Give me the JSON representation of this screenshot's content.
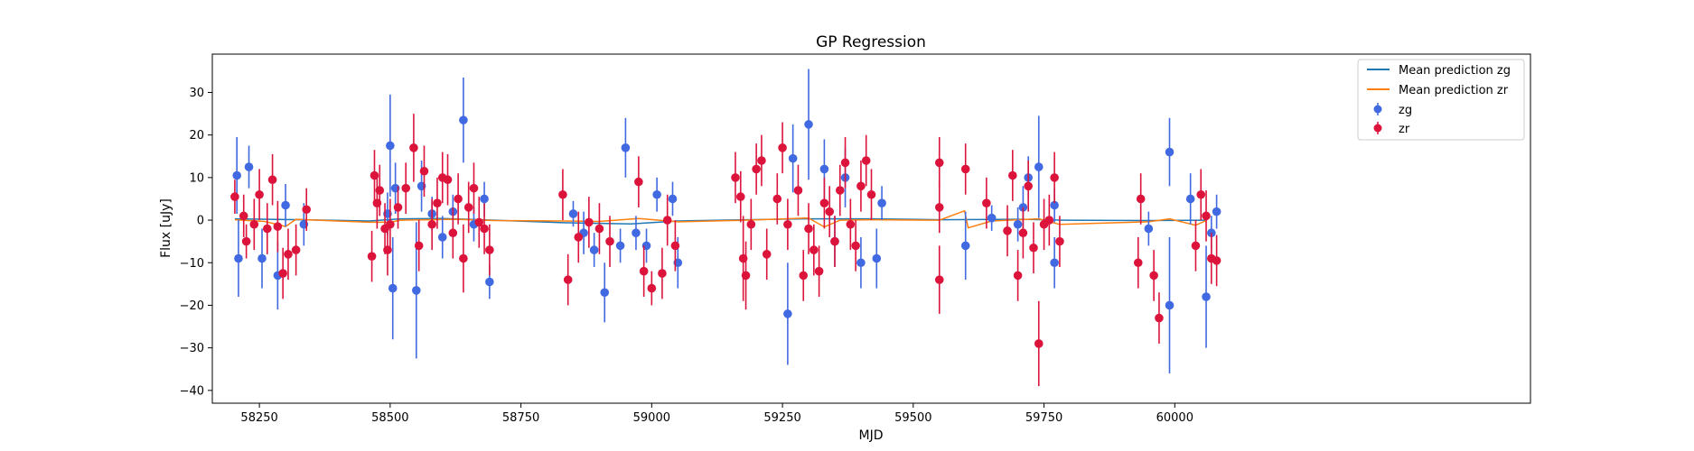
{
  "chart_data": {
    "type": "scatter",
    "title": "GP Regression",
    "xlabel": "MJD",
    "ylabel": "Flux [uJy]",
    "xlim": [
      58160,
      60680
    ],
    "ylim": [
      -43,
      39
    ],
    "xticks": [
      58250,
      58500,
      58750,
      59000,
      59250,
      59500,
      59750,
      60000
    ],
    "yticks": [
      30,
      20,
      10,
      0,
      -10,
      -20,
      -30,
      -40
    ],
    "grid": false,
    "legend_position": "top-right",
    "colors": {
      "zg": "#4169e1",
      "zr": "#dc143c",
      "mean_zg": "#1f77b4",
      "mean_zr": "#ff7f0e"
    },
    "legend": [
      {
        "label": "Mean prediction zg",
        "kind": "line",
        "color": "#1f77b4"
      },
      {
        "label": "Mean prediction zr",
        "kind": "line",
        "color": "#ff7f0e"
      },
      {
        "label": "zg",
        "kind": "errorbar",
        "color": "#4169e1"
      },
      {
        "label": "zr",
        "kind": "errorbar",
        "color": "#dc143c"
      }
    ],
    "series": [
      {
        "name": "Mean prediction zg",
        "kind": "line",
        "color": "#1f77b4",
        "points": [
          [
            58203,
            0.3
          ],
          [
            58330,
            0.1
          ],
          [
            58460,
            -0.2
          ],
          [
            58520,
            0.3
          ],
          [
            58600,
            0.4
          ],
          [
            58700,
            0.0
          ],
          [
            58830,
            -0.6
          ],
          [
            58960,
            -0.9
          ],
          [
            59050,
            -0.2
          ],
          [
            59180,
            0.1
          ],
          [
            59300,
            0.3
          ],
          [
            59420,
            0.3
          ],
          [
            59550,
            0.1
          ],
          [
            59700,
            0.2
          ],
          [
            59790,
            0.0
          ],
          [
            59950,
            -0.1
          ],
          [
            60060,
            0.0
          ]
        ]
      },
      {
        "name": "Mean prediction zr",
        "kind": "line",
        "color": "#ff7f0e",
        "points": [
          [
            58203,
            0.1
          ],
          [
            58260,
            -0.3
          ],
          [
            58300,
            -1.5
          ],
          [
            58320,
            0.2
          ],
          [
            58460,
            -0.5
          ],
          [
            58500,
            -0.5
          ],
          [
            58520,
            0.0
          ],
          [
            58620,
            0.2
          ],
          [
            58700,
            -0.1
          ],
          [
            58830,
            -0.2
          ],
          [
            58900,
            -0.3
          ],
          [
            58975,
            0.4
          ],
          [
            59050,
            -0.4
          ],
          [
            59180,
            0.0
          ],
          [
            59300,
            0.5
          ],
          [
            59330,
            -1.6
          ],
          [
            59360,
            0.0
          ],
          [
            59420,
            0.1
          ],
          [
            59550,
            0.0
          ],
          [
            59598,
            2.2
          ],
          [
            59605,
            -1.8
          ],
          [
            59650,
            -0.2
          ],
          [
            59740,
            0.3
          ],
          [
            59780,
            -1.0
          ],
          [
            59950,
            -0.4
          ],
          [
            59990,
            0.3
          ],
          [
            60040,
            -1.2
          ],
          [
            60060,
            -0.1
          ]
        ]
      },
      {
        "name": "zg",
        "kind": "errorbar",
        "color": "#4169e1",
        "points": [
          [
            58207,
            10.5,
            9
          ],
          [
            58210,
            -9,
            9
          ],
          [
            58230,
            12.5,
            5
          ],
          [
            58255,
            -9,
            7
          ],
          [
            58285,
            -13,
            8
          ],
          [
            58300,
            3.5,
            5
          ],
          [
            58335,
            -1,
            5
          ],
          [
            58495,
            1.5,
            5
          ],
          [
            58500,
            17.5,
            12
          ],
          [
            58505,
            -16,
            12
          ],
          [
            58510,
            7.5,
            6
          ],
          [
            58550,
            -16.5,
            16
          ],
          [
            58560,
            8,
            6
          ],
          [
            58580,
            1.5,
            4
          ],
          [
            58600,
            -4,
            5
          ],
          [
            58620,
            2,
            4
          ],
          [
            58640,
            23.5,
            10
          ],
          [
            58660,
            -1,
            4
          ],
          [
            58680,
            5,
            4
          ],
          [
            58690,
            -14.5,
            4
          ],
          [
            58850,
            1.5,
            3
          ],
          [
            58870,
            -3,
            5
          ],
          [
            58890,
            -7,
            4
          ],
          [
            58910,
            -17,
            7
          ],
          [
            58940,
            -6,
            4
          ],
          [
            58950,
            17,
            7
          ],
          [
            58970,
            -3,
            4
          ],
          [
            58990,
            -6,
            4
          ],
          [
            59010,
            6,
            4
          ],
          [
            59040,
            5,
            4
          ],
          [
            59050,
            -10,
            6
          ],
          [
            59260,
            -22,
            12
          ],
          [
            59270,
            14.5,
            8
          ],
          [
            59300,
            22.5,
            13
          ],
          [
            59330,
            12,
            7
          ],
          [
            59350,
            -5,
            6
          ],
          [
            59370,
            10,
            7
          ],
          [
            59400,
            -10,
            6
          ],
          [
            59430,
            -9,
            7
          ],
          [
            59440,
            4,
            4
          ],
          [
            59600,
            -6,
            8
          ],
          [
            59650,
            0.5,
            3
          ],
          [
            59700,
            -1,
            4
          ],
          [
            59710,
            3,
            5
          ],
          [
            59720,
            10,
            5
          ],
          [
            59740,
            12.5,
            12
          ],
          [
            59770,
            3.5,
            4
          ],
          [
            59770,
            -10,
            6
          ],
          [
            59950,
            -2,
            4
          ],
          [
            59990,
            16,
            8
          ],
          [
            59990,
            -20,
            16
          ],
          [
            60030,
            5,
            6
          ],
          [
            60060,
            -18,
            12
          ],
          [
            60070,
            -3,
            4
          ],
          [
            60080,
            2,
            4
          ]
        ]
      },
      {
        "name": "zr",
        "kind": "errorbar",
        "color": "#dc143c",
        "points": [
          [
            58203,
            5.5,
            4
          ],
          [
            58220,
            1,
            5
          ],
          [
            58225,
            -5,
            4
          ],
          [
            58240,
            -1,
            6
          ],
          [
            58250,
            6,
            6
          ],
          [
            58265,
            -2,
            6
          ],
          [
            58275,
            9.5,
            6
          ],
          [
            58285,
            -1.5,
            6
          ],
          [
            58295,
            -12.5,
            6
          ],
          [
            58305,
            -8,
            6
          ],
          [
            58320,
            -7,
            6
          ],
          [
            58340,
            2.5,
            5
          ],
          [
            58465,
            -8.5,
            6
          ],
          [
            58470,
            10.5,
            6
          ],
          [
            58475,
            4,
            6
          ],
          [
            58480,
            7,
            6
          ],
          [
            58490,
            -2,
            6
          ],
          [
            58495,
            -7,
            6
          ],
          [
            58500,
            -1,
            6
          ],
          [
            58515,
            3,
            5
          ],
          [
            58530,
            7.5,
            6
          ],
          [
            58545,
            17,
            8
          ],
          [
            58555,
            -6,
            6
          ],
          [
            58565,
            11.5,
            6
          ],
          [
            58580,
            -1,
            6
          ],
          [
            58590,
            4,
            6
          ],
          [
            58600,
            10,
            6
          ],
          [
            58610,
            9.5,
            6
          ],
          [
            58620,
            -3,
            6
          ],
          [
            58630,
            5,
            6
          ],
          [
            58640,
            -9,
            8
          ],
          [
            58650,
            3,
            6
          ],
          [
            58660,
            7.5,
            6
          ],
          [
            58670,
            -0.5,
            6
          ],
          [
            58680,
            -2,
            6
          ],
          [
            58690,
            -7,
            6
          ],
          [
            58830,
            6,
            6
          ],
          [
            58840,
            -14,
            6
          ],
          [
            58860,
            -4,
            6
          ],
          [
            58880,
            -0.5,
            6
          ],
          [
            58900,
            -2,
            6
          ],
          [
            58920,
            -5,
            6
          ],
          [
            58975,
            9,
            6
          ],
          [
            58985,
            -12,
            6
          ],
          [
            59000,
            -16,
            4
          ],
          [
            59020,
            -12.5,
            6
          ],
          [
            59030,
            0,
            6
          ],
          [
            59045,
            -6,
            6
          ],
          [
            59160,
            10,
            6
          ],
          [
            59170,
            5.5,
            6
          ],
          [
            59175,
            -9,
            10
          ],
          [
            59180,
            -13,
            8
          ],
          [
            59190,
            -1,
            6
          ],
          [
            59200,
            12,
            6
          ],
          [
            59210,
            14,
            6
          ],
          [
            59220,
            -8,
            6
          ],
          [
            59240,
            5,
            6
          ],
          [
            59250,
            17,
            6
          ],
          [
            59260,
            -1,
            6
          ],
          [
            59280,
            7,
            6
          ],
          [
            59290,
            -13,
            6
          ],
          [
            59300,
            -2,
            6
          ],
          [
            59310,
            -7,
            6
          ],
          [
            59320,
            -12,
            6
          ],
          [
            59330,
            4,
            6
          ],
          [
            59340,
            2,
            6
          ],
          [
            59350,
            -5,
            6
          ],
          [
            59360,
            7,
            6
          ],
          [
            59370,
            13.5,
            6
          ],
          [
            59380,
            -1,
            6
          ],
          [
            59390,
            -6,
            6
          ],
          [
            59400,
            8,
            6
          ],
          [
            59410,
            14,
            6
          ],
          [
            59420,
            6,
            6
          ],
          [
            59550,
            13.5,
            6
          ],
          [
            59550,
            -14,
            8
          ],
          [
            59550,
            3,
            6
          ],
          [
            59600,
            12,
            6
          ],
          [
            59640,
            4,
            6
          ],
          [
            59680,
            -2.5,
            6
          ],
          [
            59690,
            10.5,
            6
          ],
          [
            59700,
            -13,
            6
          ],
          [
            59710,
            -3,
            6
          ],
          [
            59720,
            8,
            6
          ],
          [
            59730,
            -6.5,
            6
          ],
          [
            59740,
            -29,
            10
          ],
          [
            59750,
            -1,
            6
          ],
          [
            59760,
            0,
            6
          ],
          [
            59770,
            10,
            6
          ],
          [
            59780,
            -5,
            6
          ],
          [
            59930,
            -10,
            6
          ],
          [
            59935,
            5,
            6
          ],
          [
            59960,
            -13,
            6
          ],
          [
            59970,
            -23,
            6
          ],
          [
            60040,
            -6,
            6
          ],
          [
            60050,
            6,
            6
          ],
          [
            60060,
            1,
            6
          ],
          [
            60070,
            -9,
            6
          ],
          [
            60080,
            -9.5,
            6
          ]
        ]
      }
    ]
  }
}
